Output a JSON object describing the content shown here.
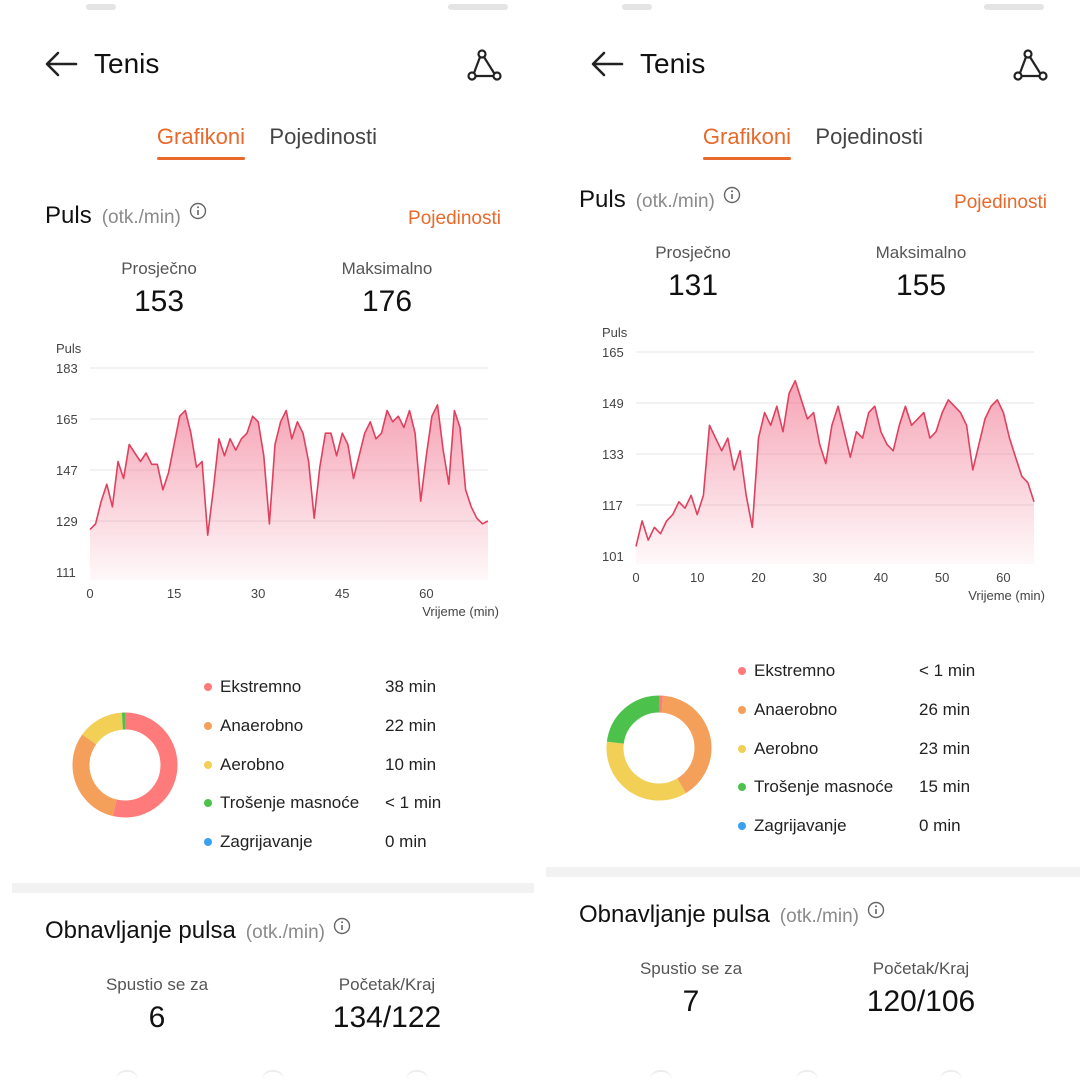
{
  "panels": [
    {
      "header": {
        "title": "Tenis"
      },
      "tabs": {
        "charts": "Grafikoni",
        "details": "Pojedinosti"
      },
      "heart_rate": {
        "title": "Puls",
        "unit": "(otk./min)",
        "details_link": "Pojedinosti",
        "avg_label": "Prosječno",
        "avg_value": "153",
        "max_label": "Maksimalno",
        "max_value": "176"
      },
      "chart_data": {
        "type": "area",
        "ylabel": "Puls",
        "xlabel": "Vrijeme (min)",
        "yticks": [
          "183",
          "165",
          "147",
          "129",
          "111"
        ],
        "xticks": [
          "0",
          "15",
          "30",
          "45",
          "60"
        ],
        "ylim": [
          111,
          183
        ],
        "xlim": [
          0,
          71
        ],
        "x": [
          0,
          1,
          2,
          3,
          4,
          5,
          6,
          7,
          8,
          9,
          10,
          11,
          12,
          13,
          14,
          15,
          16,
          17,
          18,
          19,
          20,
          21,
          22,
          23,
          24,
          25,
          26,
          27,
          28,
          29,
          30,
          31,
          32,
          33,
          34,
          35,
          36,
          37,
          38,
          39,
          40,
          41,
          42,
          43,
          44,
          45,
          46,
          47,
          48,
          49,
          50,
          51,
          52,
          53,
          54,
          55,
          56,
          57,
          58,
          59,
          60,
          61,
          62,
          63,
          64,
          65,
          66,
          67,
          68,
          69,
          70,
          71
        ],
        "y": [
          126,
          128,
          136,
          142,
          134,
          150,
          144,
          156,
          153,
          150,
          153,
          149,
          149,
          140,
          146,
          156,
          166,
          168,
          160,
          148,
          150,
          124,
          140,
          158,
          152,
          158,
          154,
          158,
          160,
          166,
          164,
          152,
          128,
          156,
          164,
          168,
          158,
          164,
          160,
          150,
          130,
          148,
          160,
          160,
          152,
          160,
          156,
          144,
          152,
          160,
          164,
          158,
          160,
          168,
          164,
          166,
          162,
          168,
          160,
          136,
          152,
          166,
          170,
          154,
          142,
          168,
          162,
          140,
          134,
          130,
          128,
          129
        ]
      },
      "zones": [
        {
          "name": "Ekstremno",
          "value": "38 min",
          "color": "#ff7a7a",
          "minutes": 38
        },
        {
          "name": "Anaerobno",
          "value": "22 min",
          "color": "#f5a05a",
          "minutes": 22
        },
        {
          "name": "Aerobno",
          "value": "10 min",
          "color": "#f2cf55",
          "minutes": 10
        },
        {
          "name": "Trošenje masnoće",
          "value": "< 1 min",
          "color": "#4cc24c",
          "minutes": 0.8
        },
        {
          "name": "Zagrijavanje",
          "value": "0 min",
          "color": "#3aa0f0",
          "minutes": 0
        }
      ],
      "recovery": {
        "title": "Obnavljanje pulsa",
        "unit": "(otk./min)",
        "drop_label": "Spustio se za",
        "drop_value": "6",
        "startend_label": "Početak/Kraj",
        "startend_value": "134/122"
      }
    },
    {
      "header": {
        "title": "Tenis"
      },
      "tabs": {
        "charts": "Grafikoni",
        "details": "Pojedinosti"
      },
      "heart_rate": {
        "title": "Puls",
        "unit": "(otk./min)",
        "details_link": "Pojedinosti",
        "avg_label": "Prosječno",
        "avg_value": "131",
        "max_label": "Maksimalno",
        "max_value": "155"
      },
      "chart_data": {
        "type": "area",
        "ylabel": "Puls",
        "xlabel": "Vrijeme (min)",
        "yticks": [
          "165",
          "149",
          "133",
          "117",
          "101"
        ],
        "xticks": [
          "0",
          "10",
          "20",
          "30",
          "40",
          "50",
          "60"
        ],
        "ylim": [
          101,
          165
        ],
        "xlim": [
          0,
          65
        ],
        "x": [
          0,
          1,
          2,
          3,
          4,
          5,
          6,
          7,
          8,
          9,
          10,
          11,
          12,
          13,
          14,
          15,
          16,
          17,
          18,
          19,
          20,
          21,
          22,
          23,
          24,
          25,
          26,
          27,
          28,
          29,
          30,
          31,
          32,
          33,
          34,
          35,
          36,
          37,
          38,
          39,
          40,
          41,
          42,
          43,
          44,
          45,
          46,
          47,
          48,
          49,
          50,
          51,
          52,
          53,
          54,
          55,
          56,
          57,
          58,
          59,
          60,
          61,
          62,
          63,
          64,
          65
        ],
        "y": [
          104,
          112,
          106,
          110,
          108,
          112,
          114,
          118,
          116,
          120,
          114,
          120,
          142,
          138,
          134,
          138,
          128,
          134,
          120,
          110,
          138,
          146,
          142,
          148,
          140,
          152,
          156,
          150,
          144,
          146,
          136,
          130,
          142,
          148,
          140,
          132,
          140,
          138,
          146,
          148,
          140,
          136,
          134,
          142,
          148,
          142,
          144,
          146,
          138,
          140,
          146,
          150,
          148,
          146,
          142,
          128,
          136,
          144,
          148,
          150,
          146,
          138,
          132,
          126,
          124,
          118
        ]
      },
      "zones": [
        {
          "name": "Ekstremno",
          "value": "< 1 min",
          "color": "#ff7a7a",
          "minutes": 0.8
        },
        {
          "name": "Anaerobno",
          "value": "26 min",
          "color": "#f5a05a",
          "minutes": 26
        },
        {
          "name": "Aerobno",
          "value": "23 min",
          "color": "#f2cf55",
          "minutes": 23
        },
        {
          "name": "Trošenje masnoće",
          "value": "15 min",
          "color": "#4cc24c",
          "minutes": 15
        },
        {
          "name": "Zagrijavanje",
          "value": "0 min",
          "color": "#3aa0f0",
          "minutes": 0
        }
      ],
      "recovery": {
        "title": "Obnavljanje pulsa",
        "unit": "(otk./min)",
        "drop_label": "Spustio se za",
        "drop_value": "7",
        "startend_label": "Početak/Kraj",
        "startend_value": "120/106"
      }
    }
  ]
}
